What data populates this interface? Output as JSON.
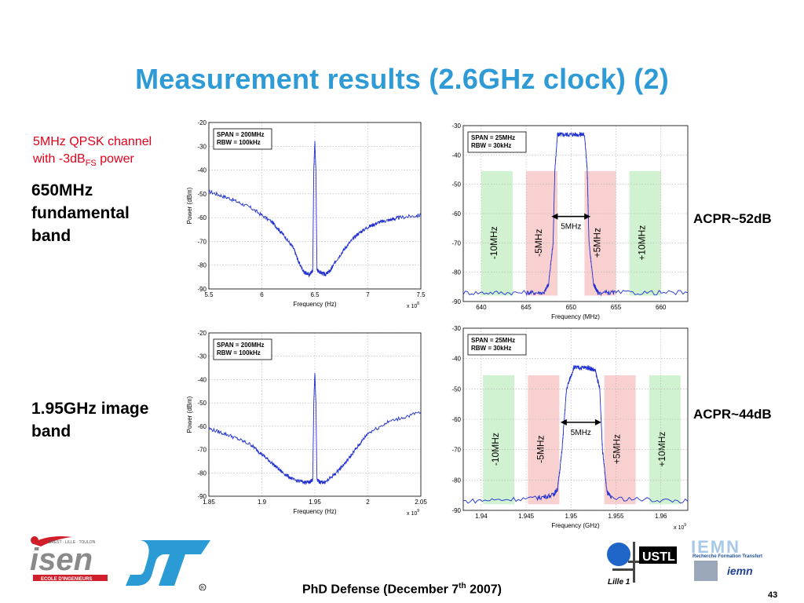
{
  "title": "Measurement results (2.6GHz clock) (2)",
  "note": {
    "line1": "5MHz QPSK channel",
    "line2_pre": "with -3dB",
    "line2_sub": "FS",
    "line2_post": " power"
  },
  "band_labels": {
    "top": [
      "650MHz",
      "fundamental",
      "band"
    ],
    "bottom": [
      "1.95GHz image",
      "band"
    ]
  },
  "acpr": {
    "top": "ACPR~52dB",
    "bottom": "ACPR~44dB"
  },
  "footer": {
    "pre": "PhD Defense (December 7",
    "sup": "th",
    "post": " 2007)"
  },
  "page_number": "43",
  "logos": {
    "isen": "isen",
    "isen_tag": "BREST · LILLE · TOULON",
    "isen_sub": "ECOLE D'INGENIEURS",
    "st": "ST",
    "ustl": "USTL",
    "lille": "Lille 1",
    "iemn": "IEMN",
    "iemn_sub": "Recherche Formation Transfert",
    "iemn_small": "iemn"
  },
  "colors": {
    "title": "#2f9bd6",
    "note": "#e0001b",
    "trace": "#1f2fd0",
    "adjacent_band": "#f8c8c8",
    "alternate_band": "#c8f0c8"
  },
  "chart_data": [
    {
      "type": "line",
      "ylabel": "Power (dBm)",
      "xlabel": "Frequency (Hz)",
      "x_multiplier": "x 10^8",
      "annotation": [
        "SPAN = 200MHz",
        "RBW = 100kHz"
      ],
      "xlim": [
        5.5,
        7.5
      ],
      "ylim": [
        -90,
        -20
      ],
      "xticks": [
        "5.5",
        "6",
        "6.5",
        "7",
        "7.5"
      ],
      "yticks": [
        "-20",
        "-30",
        "-40",
        "-50",
        "-60",
        "-70",
        "-80",
        "-90"
      ],
      "grid": true,
      "series": [
        {
          "x": [
            5.5,
            5.7,
            5.9,
            6.1,
            6.2,
            6.3,
            6.35,
            6.4,
            6.45,
            6.48,
            6.49,
            6.5,
            6.51,
            6.52,
            6.55,
            6.6,
            6.65,
            6.7,
            6.8,
            6.9,
            7.0,
            7.1,
            7.2,
            7.3,
            7.5
          ],
          "y": [
            -49,
            -52,
            -56,
            -62,
            -67,
            -73,
            -79,
            -83,
            -84,
            -82,
            -40,
            -28,
            -40,
            -82,
            -83,
            -84,
            -82,
            -78,
            -72,
            -67,
            -64,
            -62,
            -61,
            -60,
            -59
          ]
        }
      ]
    },
    {
      "type": "line",
      "ylabel": "",
      "xlabel": "Frequency (MHz)",
      "x_multiplier": "",
      "annotation": [
        "SPAN = 25MHz",
        "RBW = 30kHz"
      ],
      "xlim": [
        638,
        663
      ],
      "ylim": [
        -90,
        -30
      ],
      "xticks": [
        "640",
        "645",
        "650",
        "655",
        "660"
      ],
      "yticks": [
        "-30",
        "-40",
        "-50",
        "-60",
        "-70",
        "-80",
        "-90"
      ],
      "grid": true,
      "bands": [
        {
          "label": "-10MHz",
          "from": 640,
          "to": 643.5,
          "kind": "alternate"
        },
        {
          "label": "-5MHz",
          "from": 645,
          "to": 648.5,
          "kind": "adjacent"
        },
        {
          "label": "+5MHz",
          "from": 651.5,
          "to": 655,
          "kind": "adjacent"
        },
        {
          "label": "+10MHz",
          "from": 656.5,
          "to": 660,
          "kind": "alternate"
        }
      ],
      "channel_arrow": "5MHz",
      "series": [
        {
          "x": [
            638,
            645,
            647,
            647.5,
            648,
            648.2,
            648.5,
            649,
            650,
            651,
            651.5,
            651.8,
            652,
            652.5,
            653,
            655,
            663
          ],
          "y": [
            -87,
            -87,
            -87,
            -84,
            -70,
            -45,
            -33,
            -33,
            -33,
            -33,
            -33,
            -45,
            -70,
            -84,
            -87,
            -87,
            -87
          ]
        }
      ]
    },
    {
      "type": "line",
      "ylabel": "Power (dBm)",
      "xlabel": "Frequency (Hz)",
      "x_multiplier": "x 10^9",
      "annotation": [
        "SPAN = 200MHz",
        "RBW = 100kHz"
      ],
      "xlim": [
        1.85,
        2.05
      ],
      "ylim": [
        -90,
        -20
      ],
      "xticks": [
        "1.85",
        "1.9",
        "1.95",
        "2",
        "2.05"
      ],
      "yticks": [
        "-20",
        "-30",
        "-40",
        "-50",
        "-60",
        "-70",
        "-80",
        "-90"
      ],
      "grid": true,
      "series": [
        {
          "x": [
            1.85,
            1.87,
            1.89,
            1.9,
            1.91,
            1.92,
            1.93,
            1.94,
            1.945,
            1.948,
            1.949,
            1.95,
            1.951,
            1.952,
            1.955,
            1.96,
            1.97,
            1.98,
            1.99,
            2.0,
            2.02,
            2.05
          ],
          "y": [
            -61,
            -64,
            -68,
            -72,
            -76,
            -80,
            -83,
            -84,
            -84,
            -83,
            -50,
            -37,
            -50,
            -83,
            -84,
            -84,
            -80,
            -75,
            -69,
            -63,
            -58,
            -54
          ]
        }
      ]
    },
    {
      "type": "line",
      "ylabel": "",
      "xlabel": "Frequency (GHz)",
      "x_multiplier": "x 10^9",
      "annotation": [
        "SPAN = 25MHz",
        "RBW = 30kHz"
      ],
      "xlim": [
        1.938,
        1.963
      ],
      "ylim": [
        -90,
        -30
      ],
      "xticks": [
        "1.94",
        "1.945",
        "1.95",
        "1.955",
        "1.96"
      ],
      "yticks": [
        "-30",
        "-40",
        "-50",
        "-60",
        "-70",
        "-80",
        "-90"
      ],
      "grid": true,
      "bands": [
        {
          "label": "-10MHz",
          "from": 1.9402,
          "to": 1.9437,
          "kind": "alternate"
        },
        {
          "label": "-5MHz",
          "from": 1.9452,
          "to": 1.9487,
          "kind": "adjacent"
        },
        {
          "label": "+5MHz",
          "from": 1.9537,
          "to": 1.9572,
          "kind": "adjacent"
        },
        {
          "label": "+10MHz",
          "from": 1.9587,
          "to": 1.9622,
          "kind": "alternate"
        }
      ],
      "channel_arrow": "5MHz",
      "series": [
        {
          "x": [
            1.938,
            1.946,
            1.948,
            1.9485,
            1.949,
            1.9495,
            1.9503,
            1.951,
            1.952,
            1.9527,
            1.9532,
            1.9535,
            1.954,
            1.9545,
            1.963
          ],
          "y": [
            -87,
            -86,
            -85,
            -83,
            -70,
            -50,
            -43,
            -43,
            -43,
            -44,
            -50,
            -70,
            -84,
            -86,
            -87
          ]
        }
      ]
    }
  ]
}
